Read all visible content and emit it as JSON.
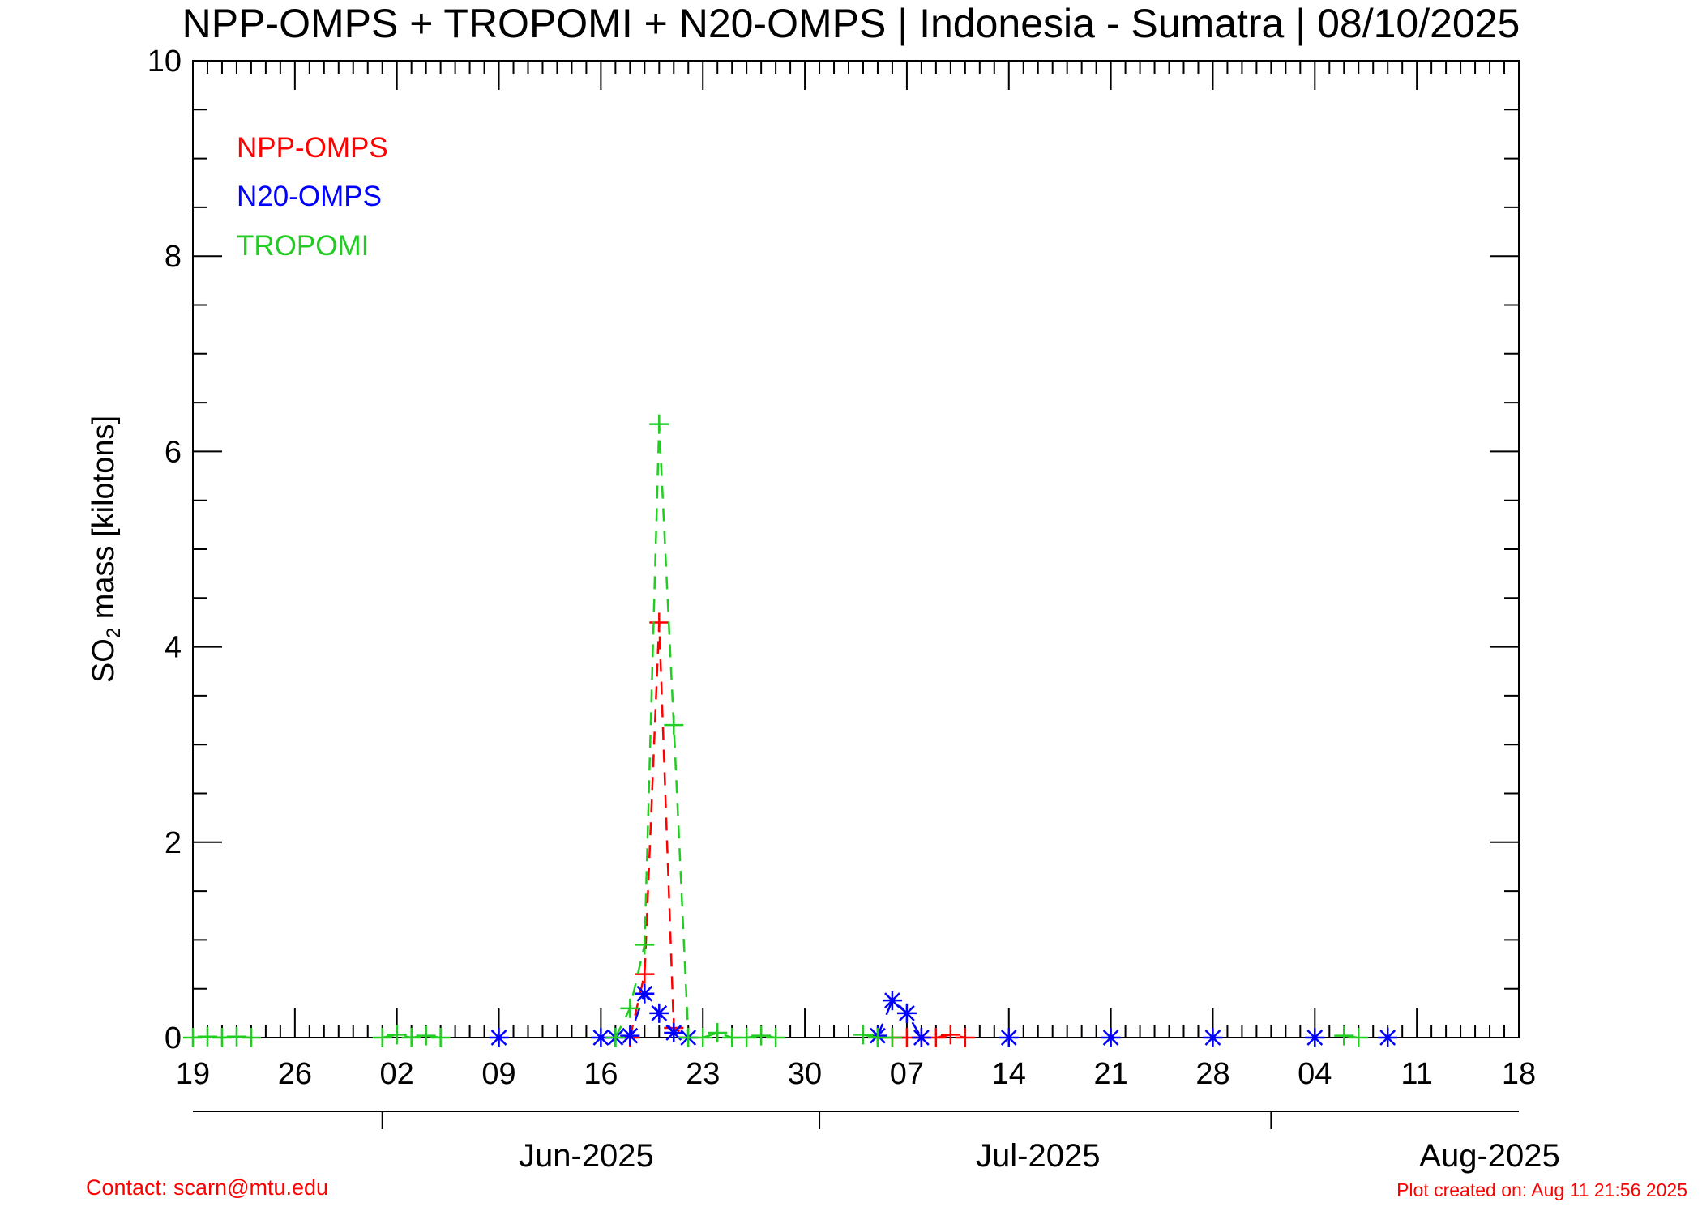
{
  "chart_data": {
    "type": "line",
    "title": "NPP-OMPS + TROPOMI + N20-OMPS | Indonesia - Sumatra | 08/10/2025",
    "ylabel_main": "SO",
    "ylabel_sub": "2",
    "ylabel_rest": " mass [kilotons]",
    "ylim": [
      0,
      10
    ],
    "yticks": [
      0,
      2,
      4,
      6,
      8,
      10
    ],
    "yticks_minor_step": 0.5,
    "xlim": [
      "2025-05-19",
      "2025-08-18"
    ],
    "xticks": [
      {
        "date": "2025-05-19",
        "label": "19"
      },
      {
        "date": "2025-05-26",
        "label": "26"
      },
      {
        "date": "2025-06-02",
        "label": "02"
      },
      {
        "date": "2025-06-09",
        "label": "09"
      },
      {
        "date": "2025-06-16",
        "label": "16"
      },
      {
        "date": "2025-06-23",
        "label": "23"
      },
      {
        "date": "2025-06-30",
        "label": "30"
      },
      {
        "date": "2025-07-07",
        "label": "07"
      },
      {
        "date": "2025-07-14",
        "label": "14"
      },
      {
        "date": "2025-07-21",
        "label": "21"
      },
      {
        "date": "2025-07-28",
        "label": "28"
      },
      {
        "date": "2025-08-04",
        "label": "04"
      },
      {
        "date": "2025-08-11",
        "label": "11"
      },
      {
        "date": "2025-08-18",
        "label": "18"
      }
    ],
    "months": [
      {
        "label": "Jun-2025",
        "start": "2025-06-01",
        "mid": "2025-06-15"
      },
      {
        "label": "Jul-2025",
        "start": "2025-07-01",
        "mid": "2025-07-16"
      },
      {
        "label": "Aug-2025",
        "start": "2025-08-01",
        "mid": "2025-08-16"
      }
    ],
    "series": [
      {
        "name": "NPP-OMPS",
        "color": "#ff0000",
        "marker": "plus",
        "points": [
          [
            "2025-06-18",
            0.0
          ],
          [
            "2025-06-19",
            0.65
          ],
          [
            "2025-06-20",
            4.25
          ],
          [
            "2025-06-21",
            0.1
          ],
          [
            "2025-06-22",
            0.0
          ],
          [
            "2025-07-06",
            0.0
          ],
          [
            "2025-07-07",
            0.0
          ],
          [
            "2025-07-08",
            0.0
          ],
          [
            "2025-07-09",
            0.0
          ],
          [
            "2025-07-10",
            0.03
          ],
          [
            "2025-07-11",
            0.0
          ]
        ]
      },
      {
        "name": "N20-OMPS",
        "color": "#0000ff",
        "marker": "star",
        "points": [
          [
            "2025-06-09",
            0.0
          ],
          [
            "2025-06-16",
            0.0
          ],
          [
            "2025-06-17",
            0.0
          ],
          [
            "2025-06-18",
            0.02
          ],
          [
            "2025-06-19",
            0.45
          ],
          [
            "2025-06-20",
            0.25
          ],
          [
            "2025-06-21",
            0.05
          ],
          [
            "2025-06-22",
            0.0
          ],
          [
            "2025-07-05",
            0.02
          ],
          [
            "2025-07-06",
            0.38
          ],
          [
            "2025-07-07",
            0.25
          ],
          [
            "2025-07-08",
            0.0
          ],
          [
            "2025-07-14",
            0.0
          ],
          [
            "2025-07-21",
            0.0
          ],
          [
            "2025-07-28",
            0.0
          ],
          [
            "2025-08-04",
            0.0
          ],
          [
            "2025-08-09",
            0.0
          ]
        ]
      },
      {
        "name": "TROPOMI",
        "color": "#22cc22",
        "marker": "plus",
        "points": [
          [
            "2025-05-19",
            0.0
          ],
          [
            "2025-05-20",
            0.01
          ],
          [
            "2025-05-21",
            0.0
          ],
          [
            "2025-05-22",
            0.01
          ],
          [
            "2025-05-23",
            0.0
          ],
          [
            "2025-06-01",
            0.0
          ],
          [
            "2025-06-02",
            0.03
          ],
          [
            "2025-06-03",
            0.0
          ],
          [
            "2025-06-04",
            0.02
          ],
          [
            "2025-06-05",
            0.0
          ],
          [
            "2025-06-17",
            0.0
          ],
          [
            "2025-06-18",
            0.3
          ],
          [
            "2025-06-19",
            0.95
          ],
          [
            "2025-06-20",
            6.28
          ],
          [
            "2025-06-21",
            3.2
          ],
          [
            "2025-06-22",
            0.0
          ],
          [
            "2025-06-23",
            0.0
          ],
          [
            "2025-06-24",
            0.05
          ],
          [
            "2025-06-25",
            0.0
          ],
          [
            "2025-06-26",
            0.0
          ],
          [
            "2025-06-27",
            0.02
          ],
          [
            "2025-06-28",
            0.0
          ],
          [
            "2025-07-04",
            0.03
          ],
          [
            "2025-07-05",
            0.0
          ],
          [
            "2025-07-06",
            0.0
          ],
          [
            "2025-08-06",
            0.02
          ],
          [
            "2025-08-07",
            0.0
          ]
        ]
      }
    ],
    "legend_position": "top-left",
    "footer_contact": "Contact: scarn@mtu.edu",
    "footer_created": "Plot created on: Aug 11 21:56 2025"
  }
}
